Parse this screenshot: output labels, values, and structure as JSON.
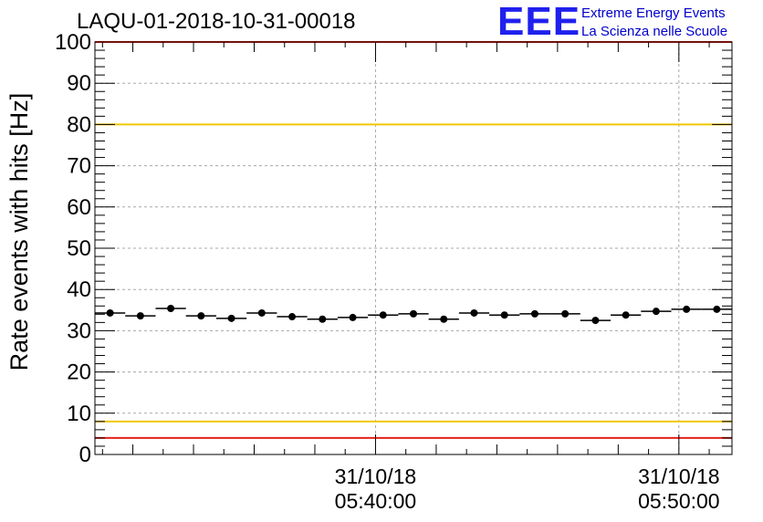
{
  "header": {
    "title": "LAQU-01-2018-10-31-00018",
    "logo_mark": "EEE",
    "logo_line1": "Extreme Energy Events",
    "logo_line2": "La Scienza nelle Scuole"
  },
  "chart_data": {
    "type": "scatter",
    "title": "LAQU-01-2018-10-31-00018",
    "xlabel": "",
    "ylabel": "Rate events with hits [Hz]",
    "ylim": [
      0,
      100
    ],
    "yticks": [
      0,
      10,
      20,
      30,
      40,
      50,
      60,
      70,
      80,
      90,
      100
    ],
    "ytick_labels": [
      "0",
      "10",
      "20",
      "30",
      "40",
      "50",
      "60",
      "70",
      "80",
      "90",
      "100"
    ],
    "xlim": [
      "05:30:45",
      "05:51:45"
    ],
    "xtick_labels": [
      {
        "date": "31/10/18",
        "time": "05:40:00"
      },
      {
        "date": "31/10/18",
        "time": "05:50:00"
      }
    ],
    "grid": true,
    "series": [
      {
        "x": [
          "05:31:15",
          "05:32:15",
          "05:33:15",
          "05:34:15",
          "05:35:15",
          "05:36:15",
          "05:37:15",
          "05:38:15",
          "05:39:15",
          "05:40:15",
          "05:41:15",
          "05:42:15",
          "05:43:15",
          "05:44:15",
          "05:45:15",
          "05:46:15",
          "05:47:15",
          "05:48:15",
          "05:49:15",
          "05:50:15",
          "05:51:15"
        ],
        "values": [
          34.3,
          33.6,
          35.4,
          33.6,
          33.0,
          34.3,
          33.4,
          32.8,
          33.2,
          33.8,
          34.1,
          32.8,
          34.3,
          33.8,
          34.1,
          34.1,
          32.5,
          33.8,
          34.7,
          35.2,
          35.2
        ],
        "bin_width_seconds": 60,
        "color": "#000000"
      }
    ],
    "reference_lines": [
      {
        "y": 80,
        "color": "#f0c800"
      },
      {
        "y": 8,
        "color": "#f0c800"
      },
      {
        "y": 4,
        "color": "#e8201a"
      },
      {
        "y": 100,
        "color": "#e8201a"
      }
    ]
  }
}
